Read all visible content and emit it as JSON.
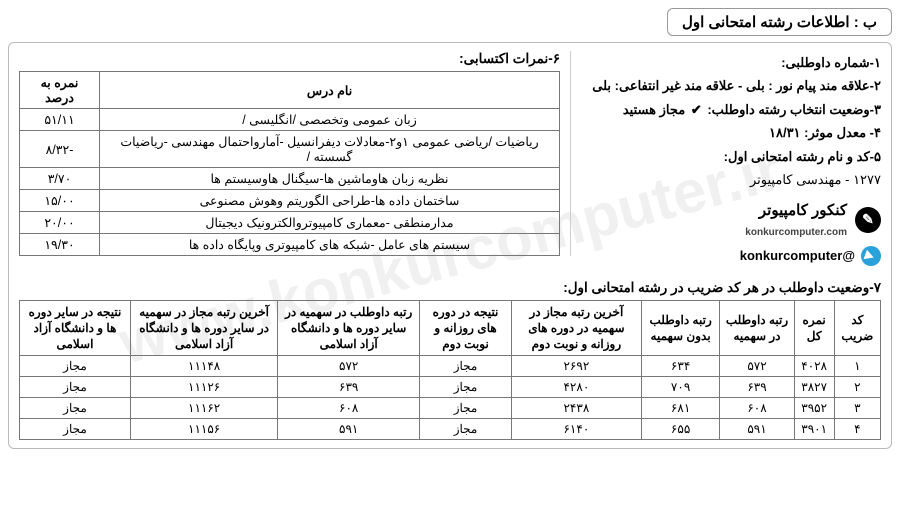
{
  "watermark": "www.konkurcomputer.ir",
  "title": "ب : اطلاعات رشته امتحانی اول",
  "info": {
    "l1": "۱-شماره داوطلبی:",
    "l2": "۲-علاقه مند پیام نور : بلی - علاقه مند غیر انتفاعی: بلی",
    "l3_pre": "۳-وضعیت انتخاب رشته داوطلب:",
    "l3_val": "مجاز هستید",
    "l4": "۴- معدل موثر: ۱۸/۳۱",
    "l5a": "۵-کد و نام رشته امتحانی اول:",
    "l5b": "۱۲۷۷ - مهندسی کامپیوتر"
  },
  "brand": {
    "name": "کنکور کامپیوتر",
    "site": "konkurcomputer.com",
    "handle": "@konkurcomputer"
  },
  "scores": {
    "title": "۶-نمرات اکتسابی:",
    "headers": [
      "نام درس",
      "نمره به درصد"
    ],
    "rows": [
      [
        "زبان عمومی وتخصصی /انگلیسی /",
        "۵۱/۱۱"
      ],
      [
        "ریاضیات /ریاضی عمومی ۱و۲-معادلات دیفرانسیل -آمارواحتمال مهندسی -ریاضیات گسسته /",
        "-۸/۳۲"
      ],
      [
        "نظریه زبان هاوماشین ها-سیگنال هاوسیستم ها",
        "۳/۷۰"
      ],
      [
        "ساختمان داده ها-طراحی الگوریتم وهوش مصنوعی",
        "۱۵/۰۰"
      ],
      [
        "مدارمنطقی -معماری کامپیوتروالکترونیک دیجیتال",
        "۲۰/۰۰"
      ],
      [
        "سیستم های عامل -شبکه های کامپیوتری وپایگاه داده ها",
        "۱۹/۳۰"
      ]
    ]
  },
  "status": {
    "title": "۷-وضعیت داوطلب در هر کد ضریب در رشته امتحانی اول:",
    "headers": [
      "کد ضریب",
      "نمره کل",
      "رتبه داوطلب در سهمیه",
      "رتبه داوطلب بدون سهمیه",
      "آخرین رتبه مجاز در سهمیه در دوره های روزانه و نوبت دوم",
      "نتیجه در دوره های روزانه و نوبت دوم",
      "رتبه داوطلب در سهمیه در سایر دوره ها و دانشگاه آزاد اسلامی",
      "آخرین رتبه مجاز در سهمیه در سایر دوره ها و دانشگاه آزاد اسلامی",
      "نتیجه در سایر دوره ها و دانشگاه آزاد اسلامی"
    ],
    "rows": [
      [
        "۱",
        "۴۰۲۸",
        "۵۷۲",
        "۶۳۴",
        "۲۶۹۲",
        "مجاز",
        "۵۷۲",
        "۱۱۱۴۸",
        "مجاز"
      ],
      [
        "۲",
        "۳۸۲۷",
        "۶۳۹",
        "۷۰۹",
        "۴۲۸۰",
        "مجاز",
        "۶۳۹",
        "۱۱۱۲۶",
        "مجاز"
      ],
      [
        "۳",
        "۳۹۵۲",
        "۶۰۸",
        "۶۸۱",
        "۲۴۳۸",
        "مجاز",
        "۶۰۸",
        "۱۱۱۶۲",
        "مجاز"
      ],
      [
        "۴",
        "۳۹۰۱",
        "۵۹۱",
        "۶۵۵",
        "۶۱۴۰",
        "مجاز",
        "۵۹۱",
        "۱۱۱۵۶",
        "مجاز"
      ]
    ]
  }
}
